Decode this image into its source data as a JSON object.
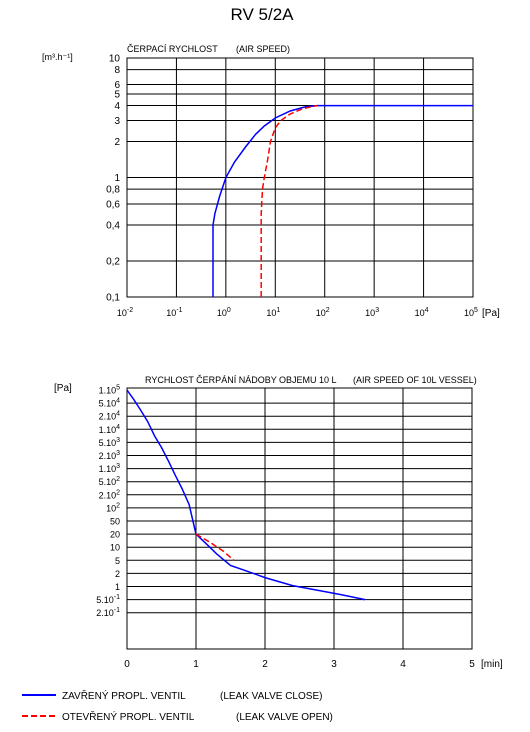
{
  "title": "RV 5/2A",
  "chart_data": [
    {
      "type": "line",
      "title": "ČERPACÍ RYCHLOST",
      "subtitle": "(AIR SPEED)",
      "ylabel": "[m³.h⁻¹]",
      "xlabel": "[Pa]",
      "xscale": "log",
      "yscale": "log",
      "xlim": [
        0.01,
        100000
      ],
      "ylim": [
        0.1,
        10
      ],
      "grid": true,
      "x_ticks": [
        {
          "v": 0.01,
          "base": "10",
          "exp": "-2"
        },
        {
          "v": 0.1,
          "base": "10",
          "exp": "-1"
        },
        {
          "v": 1,
          "base": "10",
          "exp": "0"
        },
        {
          "v": 10,
          "base": "10",
          "exp": "1"
        },
        {
          "v": 100,
          "base": "10",
          "exp": "2"
        },
        {
          "v": 1000,
          "base": "10",
          "exp": "3"
        },
        {
          "v": 10000,
          "base": "10",
          "exp": "4"
        },
        {
          "v": 100000,
          "base": "10",
          "exp": "5"
        }
      ],
      "y_ticks": [
        {
          "v": 10,
          "label": "10"
        },
        {
          "v": 8,
          "label": "8"
        },
        {
          "v": 6,
          "label": "6"
        },
        {
          "v": 5,
          "label": "5"
        },
        {
          "v": 4,
          "label": "4"
        },
        {
          "v": 3,
          "label": "3"
        },
        {
          "v": 2,
          "label": "2"
        },
        {
          "v": 1,
          "label": "1"
        },
        {
          "v": 0.8,
          "label": "0,8"
        },
        {
          "v": 0.6,
          "label": "0,6"
        },
        {
          "v": 0.4,
          "label": "0,4"
        },
        {
          "v": 0.2,
          "label": "0,2"
        },
        {
          "v": 0.1,
          "label": "0,1"
        }
      ],
      "series": [
        {
          "name": "ZAVŘENÝ PROPL. VENTIL (LEAK VALVE CLOSE)",
          "color": "#0000ff",
          "dash": false,
          "x": [
            0.55,
            0.55,
            0.6,
            0.75,
            1.0,
            1.5,
            2.5,
            4,
            6,
            10,
            20,
            40,
            70,
            100000
          ],
          "y": [
            0.1,
            0.4,
            0.5,
            0.7,
            1.0,
            1.35,
            1.8,
            2.3,
            2.7,
            3.15,
            3.6,
            3.9,
            4.0,
            4.0
          ]
        },
        {
          "name": "OTEVŘENÝ PROPL. VENTIL (LEAK VALVE OPEN)",
          "color": "#ff0000",
          "dash": true,
          "x": [
            5.2,
            5.2,
            5.5,
            6,
            7,
            8,
            10,
            13,
            20,
            35,
            60,
            70
          ],
          "y": [
            0.1,
            0.5,
            0.8,
            1.0,
            1.4,
            2.0,
            2.6,
            3.0,
            3.4,
            3.75,
            3.95,
            4.0
          ]
        }
      ]
    },
    {
      "type": "line",
      "title": "RYCHLOST ČERPÁNÍ NÁDOBY OBJEMU 10 L",
      "subtitle": "(AIR SPEED OF 10L VESSEL)",
      "ylabel": "[Pa]",
      "xlabel": "[min]",
      "xlim": [
        0,
        5
      ],
      "grid": true,
      "x_ticks": [
        "0",
        "1",
        "2",
        "3",
        "4",
        "5"
      ],
      "y_ticks": [
        {
          "label": "1.10",
          "sup": "5"
        },
        {
          "label": "5.10",
          "sup": "4"
        },
        {
          "label": "2.10",
          "sup": "4"
        },
        {
          "label": "1.10",
          "sup": "4"
        },
        {
          "label": "5.10",
          "sup": "3"
        },
        {
          "label": "2.10",
          "sup": "3"
        },
        {
          "label": "1.10",
          "sup": "3"
        },
        {
          "label": "5.10",
          "sup": "2"
        },
        {
          "label": "2.10",
          "sup": "2"
        },
        {
          "label": "10",
          "sup": "2"
        },
        {
          "label": "50",
          "sup": ""
        },
        {
          "label": "20",
          "sup": ""
        },
        {
          "label": "10",
          "sup": ""
        },
        {
          "label": "5",
          "sup": ""
        },
        {
          "label": "2",
          "sup": ""
        },
        {
          "label": "1",
          "sup": ""
        },
        {
          "label": "5.10",
          "sup": "-1"
        },
        {
          "label": "2.10",
          "sup": "-1"
        }
      ],
      "series": [
        {
          "name": "ZAVŘENÝ PROPL. VENTIL (LEAK VALVE CLOSE)",
          "color": "#0000ff",
          "dash": false,
          "x": [
            0,
            0.1,
            0.2,
            0.3,
            0.4,
            0.5,
            0.6,
            0.7,
            0.8,
            0.9,
            1.0,
            1.15,
            1.3,
            1.5,
            1.75,
            2.0,
            2.4,
            2.8,
            3.1,
            3.45
          ],
          "y": [
            100000,
            60000,
            30000,
            15000,
            7000,
            3500,
            1500,
            700,
            300,
            120,
            20,
            12,
            7,
            3.5,
            2.3,
            1.6,
            1.05,
            0.8,
            0.65,
            0.5
          ]
        },
        {
          "name": "OTEVŘENÝ PROPL. VENTIL (LEAK VALVE OPEN)",
          "color": "#ff0000",
          "dash": true,
          "x": [
            1.0,
            1.2,
            1.4,
            1.55
          ],
          "y": [
            20,
            13,
            8,
            5
          ]
        }
      ]
    }
  ],
  "legend": [
    {
      "text": "ZAVŘENÝ  PROPL.  VENTIL",
      "note": "(LEAK VALVE CLOSE)",
      "color": "#0000ff",
      "dash": false
    },
    {
      "text": "OTEVŘENÝ  PROPL.  VENTIL",
      "note": "(LEAK VALVE OPEN)",
      "color": "#ff0000",
      "dash": true
    }
  ]
}
